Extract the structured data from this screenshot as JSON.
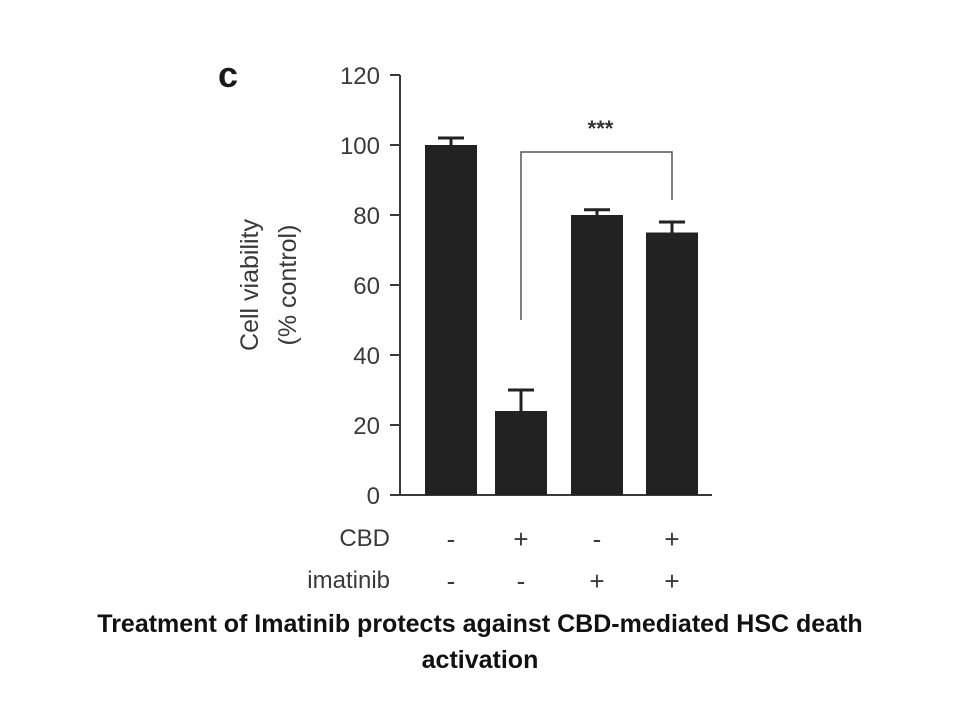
{
  "chart_data": {
    "type": "bar",
    "panel_label": "c",
    "ylabel_line1": "Cell viability",
    "ylabel_line2": "(% control)",
    "ylim": [
      0,
      120
    ],
    "yticks": [
      0,
      20,
      40,
      60,
      80,
      100,
      120
    ],
    "values": [
      100,
      24,
      80,
      75
    ],
    "errors": [
      2,
      6,
      1.5,
      3
    ],
    "conditions": [
      {
        "name": "CBD",
        "signs": [
          "-",
          "+",
          "-",
          "+"
        ]
      },
      {
        "name": "imatinib",
        "signs": [
          "-",
          "-",
          "+",
          "+"
        ]
      }
    ],
    "significance": {
      "label": "***",
      "from_bar": 1,
      "to_bar": 3
    },
    "bar_color": "#222222"
  },
  "caption": "Treatment of Imatinib protects against CBD-mediated HSC death activation"
}
